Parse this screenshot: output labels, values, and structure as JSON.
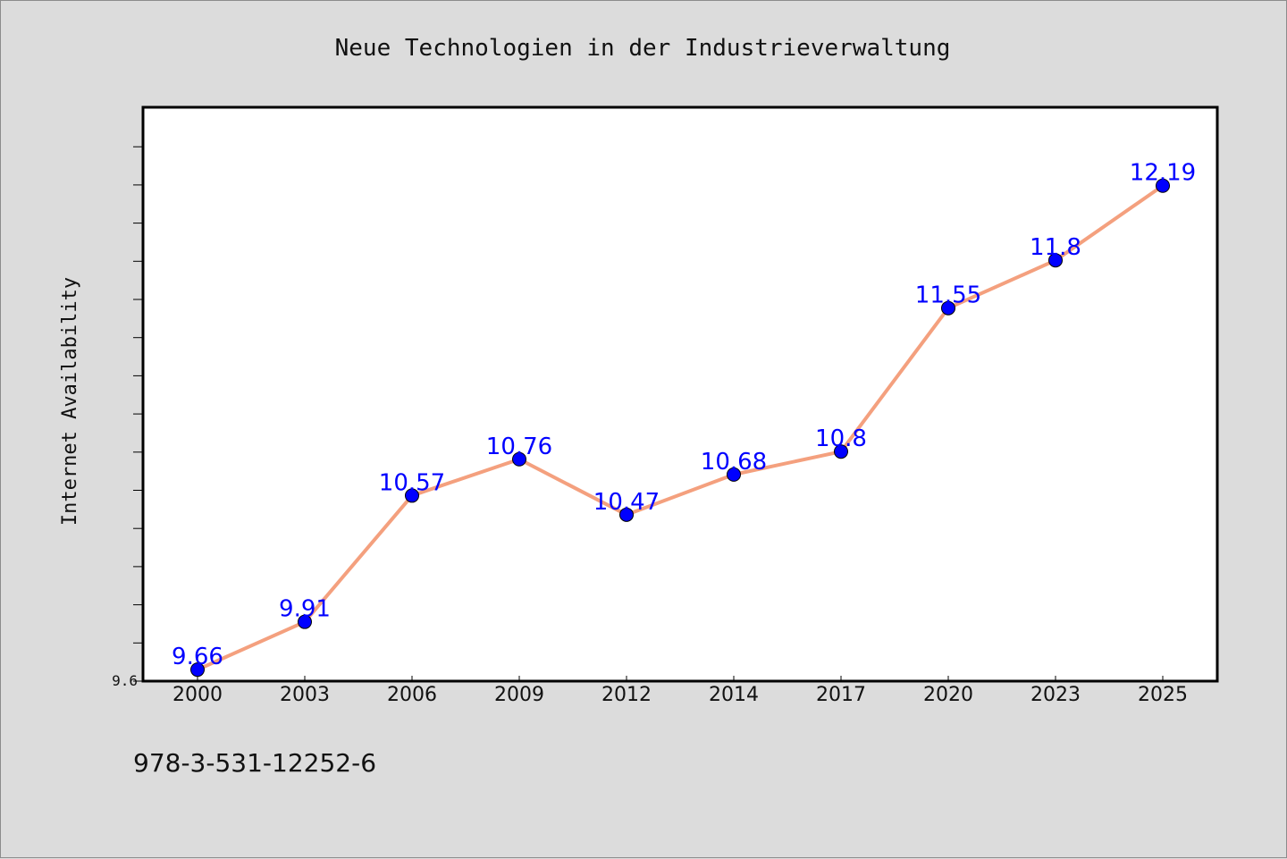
{
  "chart_data": {
    "type": "line",
    "title": "Neue Technologien in der Industrieverwaltung",
    "xlabel": "",
    "ylabel": "Internet Availability",
    "categories": [
      "2000",
      "2003",
      "2006",
      "2009",
      "2012",
      "2014",
      "2017",
      "2020",
      "2023",
      "2025"
    ],
    "series": [
      {
        "values": [
          9.66,
          9.91,
          10.57,
          10.76,
          10.47,
          10.68,
          10.8,
          11.55,
          11.8,
          12.19
        ],
        "labels": [
          "9.66",
          "9.91",
          "10.57",
          "10.76",
          "10.47",
          "10.68",
          "10.8",
          "11.55",
          "11.8",
          "12.19"
        ],
        "line_color": "#f4a07e",
        "marker_color": "#0000ff"
      }
    ],
    "ylim": [
      9.6,
      12.6
    ],
    "ytick_label": "9.6",
    "grid": false,
    "legend": "none"
  },
  "footer": {
    "isbn": "978-3-531-12252-6"
  },
  "colors": {
    "background": "#dcdcdc",
    "plot_background": "#ffffff",
    "data_label": "#0000ff"
  }
}
